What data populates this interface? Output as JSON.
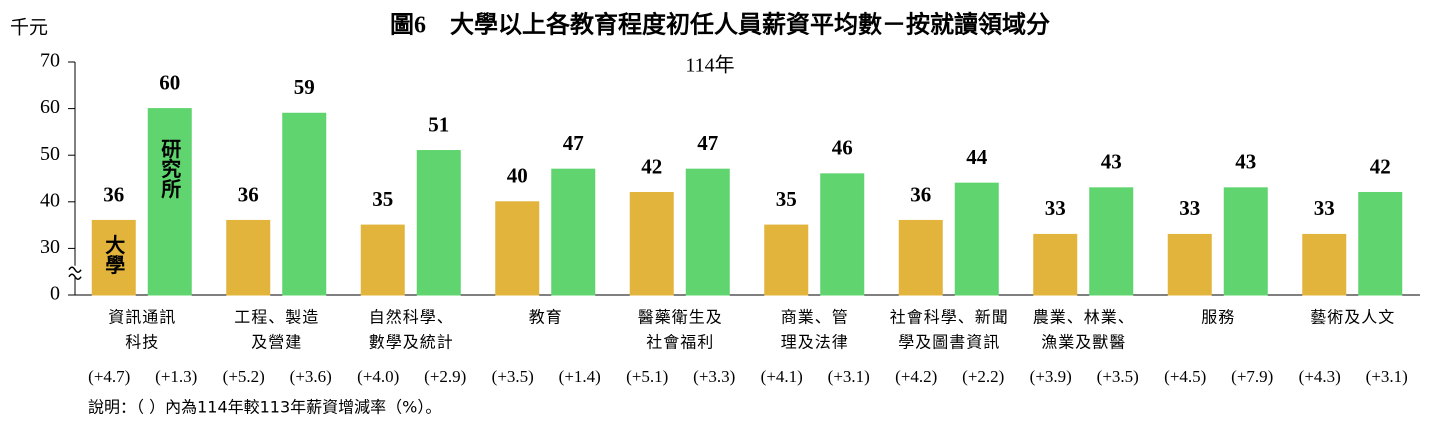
{
  "chart_data": {
    "type": "bar",
    "title": "圖6　大學以上各教育程度初任人員薪資平均數－按就讀領域分",
    "subtitle": "114年",
    "y_unit": "千元",
    "note": "說明：（ ）內為114年較113年薪資增減率（%）。",
    "categories": [
      [
        "資訊通訊",
        "科技"
      ],
      [
        "工程、製造",
        "及營建"
      ],
      [
        "自然科學、",
        "數學及統計"
      ],
      [
        "教育"
      ],
      [
        "醫藥衛生及",
        "社會福利"
      ],
      [
        "商業、管",
        "理及法律"
      ],
      [
        "社會科學、新聞",
        "學及圖書資訊"
      ],
      [
        "農業、林業、",
        "漁業及獸醫"
      ],
      [
        "服務"
      ],
      [
        "藝術及人文"
      ]
    ],
    "series": [
      {
        "name": "大學",
        "color": "#e2b43c",
        "values": [
          36,
          36,
          35,
          40,
          42,
          35,
          36,
          33,
          33,
          33
        ],
        "changes": [
          4.7,
          5.2,
          4.0,
          3.5,
          5.1,
          4.1,
          4.2,
          3.9,
          4.5,
          4.3
        ],
        "change_labels": [
          "(+4.7)",
          "(+5.2)",
          "(+4.0)",
          "(+3.5)",
          "(+5.1)",
          "(+4.1)",
          "(+4.2)",
          "(+3.9)",
          "(+4.5)",
          "(+4.3)"
        ]
      },
      {
        "name": "研究所",
        "color": "#5fd46f",
        "values": [
          60,
          59,
          51,
          47,
          47,
          46,
          44,
          43,
          43,
          42
        ],
        "changes": [
          1.3,
          3.6,
          2.9,
          1.4,
          3.3,
          3.1,
          2.2,
          3.5,
          7.9,
          3.1
        ],
        "change_labels": [
          "(+1.3)",
          "(+3.6)",
          "(+2.9)",
          "(+1.4)",
          "(+3.3)",
          "(+3.1)",
          "(+2.2)",
          "(+3.5)",
          "(+7.9)",
          "(+3.1)"
        ]
      }
    ],
    "ylim": [
      0,
      70
    ],
    "yticks": [
      0,
      30,
      40,
      50,
      60,
      70
    ],
    "axis_break": true
  }
}
